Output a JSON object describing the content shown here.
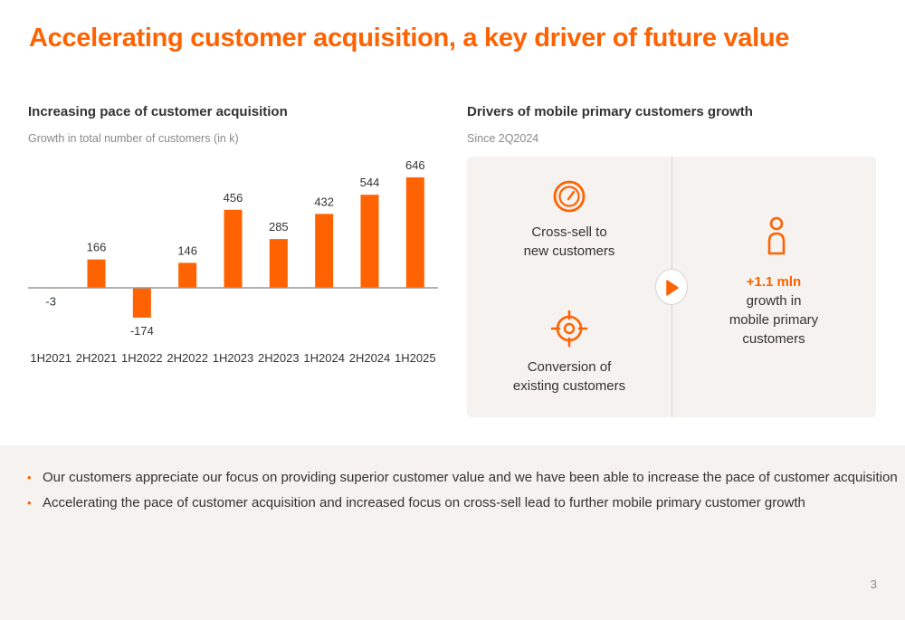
{
  "slide": {
    "title": "Accelerating customer acquisition, a key driver of future value",
    "page_number": "3"
  },
  "left_section": {
    "title": "Increasing pace of customer acquisition",
    "subtitle": "Growth in total number of customers (in k)"
  },
  "chart_data": {
    "type": "bar",
    "title": "Increasing pace of customer acquisition",
    "subtitle": "Growth in total number of customers (in k)",
    "categories": [
      "1H2021",
      "2H2021",
      "1H2022",
      "2H2022",
      "1H2023",
      "2H2023",
      "1H2024",
      "2H2024",
      "1H2025"
    ],
    "values": [
      -3,
      166,
      -174,
      146,
      456,
      285,
      432,
      544,
      646
    ],
    "data_labels": [
      "-3",
      "166",
      "-174",
      "146",
      "456",
      "285",
      "432",
      "544",
      "646"
    ],
    "ylim": [
      -200,
      700
    ],
    "grid": false,
    "bar_color": "#ff6200",
    "axis_color": "#999999"
  },
  "right_section": {
    "title": "Drivers of mobile primary customers growth",
    "subtitle": "Since 2Q2024",
    "drivers": [
      {
        "icon": "gauge-icon",
        "line1": "Cross-sell to",
        "line2": "new customers"
      },
      {
        "icon": "target-icon",
        "line1": "Conversion of",
        "line2": "existing customers"
      }
    ],
    "arrow_icon": "play-arrow-icon",
    "result": {
      "icon": "person-icon",
      "highlight": "+1.1 mln",
      "line1": "growth in",
      "line2": "mobile primary",
      "line3": "customers"
    }
  },
  "bullets": [
    "Our customers appreciate our focus on providing superior customer value and we have been able to increase the pace of customer acquisition",
    "Accelerating the pace of customer acquisition and increased focus on cross-sell lead to further mobile primary customer growth"
  ],
  "colors": {
    "accent": "#ff6200",
    "panel": "#f5f2ef",
    "text": "#333333",
    "muted": "#8a8a8a"
  }
}
